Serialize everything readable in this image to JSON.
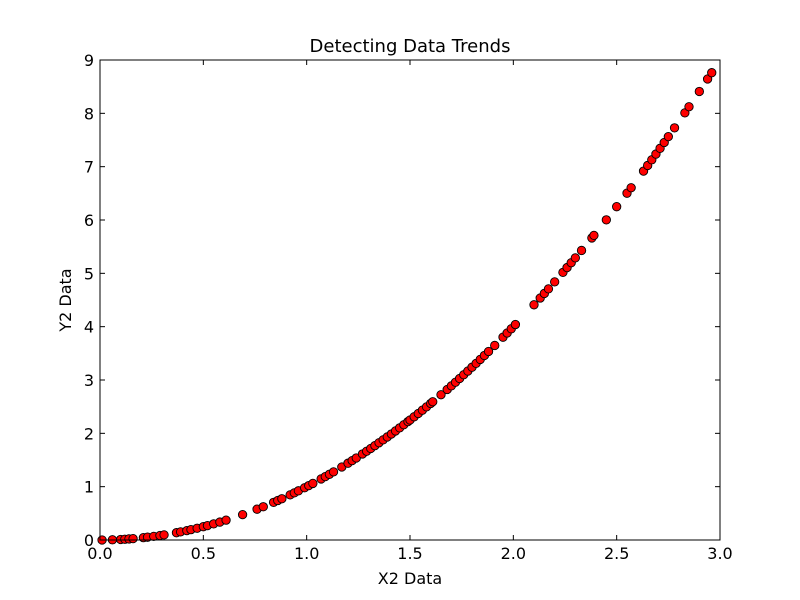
{
  "chart_data": {
    "type": "scatter",
    "title": "Detecting Data Trends",
    "xlabel": "X2 Data",
    "ylabel": "Y2 Data",
    "xlim": [
      0.0,
      3.0
    ],
    "ylim": [
      0,
      9
    ],
    "x_ticks": [
      "0.0",
      "0.5",
      "1.0",
      "1.5",
      "2.0",
      "2.5",
      "3.0"
    ],
    "y_ticks": [
      "0",
      "1",
      "2",
      "3",
      "4",
      "5",
      "6",
      "7",
      "8",
      "9"
    ],
    "grid": false,
    "marker_color": "#ff0000",
    "marker_edge_color": "#000000",
    "series": [
      {
        "points": [
          [
            0.01,
            0.0001
          ],
          [
            0.06,
            0.004
          ],
          [
            0.1,
            0.01
          ],
          [
            0.12,
            0.014
          ],
          [
            0.14,
            0.02
          ],
          [
            0.16,
            0.026
          ],
          [
            0.21,
            0.044
          ],
          [
            0.23,
            0.053
          ],
          [
            0.26,
            0.068
          ],
          [
            0.29,
            0.084
          ],
          [
            0.31,
            0.096
          ],
          [
            0.37,
            0.137
          ],
          [
            0.39,
            0.152
          ],
          [
            0.42,
            0.176
          ],
          [
            0.44,
            0.194
          ],
          [
            0.47,
            0.221
          ],
          [
            0.5,
            0.25
          ],
          [
            0.52,
            0.27
          ],
          [
            0.55,
            0.303
          ],
          [
            0.58,
            0.336
          ],
          [
            0.61,
            0.372
          ],
          [
            0.69,
            0.476
          ],
          [
            0.76,
            0.578
          ],
          [
            0.79,
            0.624
          ],
          [
            0.84,
            0.706
          ],
          [
            0.86,
            0.74
          ],
          [
            0.88,
            0.774
          ],
          [
            0.92,
            0.846
          ],
          [
            0.94,
            0.884
          ],
          [
            0.96,
            0.922
          ],
          [
            0.99,
            0.98
          ],
          [
            1.01,
            1.02
          ],
          [
            1.03,
            1.061
          ],
          [
            1.07,
            1.145
          ],
          [
            1.09,
            1.188
          ],
          [
            1.11,
            1.232
          ],
          [
            1.13,
            1.277
          ],
          [
            1.17,
            1.369
          ],
          [
            1.2,
            1.44
          ],
          [
            1.22,
            1.488
          ],
          [
            1.24,
            1.538
          ],
          [
            1.27,
            1.613
          ],
          [
            1.29,
            1.664
          ],
          [
            1.31,
            1.716
          ],
          [
            1.33,
            1.769
          ],
          [
            1.35,
            1.823
          ],
          [
            1.37,
            1.877
          ],
          [
            1.39,
            1.932
          ],
          [
            1.41,
            1.988
          ],
          [
            1.43,
            2.045
          ],
          [
            1.45,
            2.103
          ],
          [
            1.47,
            2.161
          ],
          [
            1.49,
            2.22
          ],
          [
            1.5,
            2.25
          ],
          [
            1.52,
            2.31
          ],
          [
            1.54,
            2.372
          ],
          [
            1.56,
            2.434
          ],
          [
            1.58,
            2.496
          ],
          [
            1.6,
            2.56
          ],
          [
            1.61,
            2.592
          ],
          [
            1.65,
            2.723
          ],
          [
            1.68,
            2.822
          ],
          [
            1.7,
            2.89
          ],
          [
            1.72,
            2.958
          ],
          [
            1.74,
            3.028
          ],
          [
            1.76,
            3.098
          ],
          [
            1.78,
            3.168
          ],
          [
            1.8,
            3.24
          ],
          [
            1.82,
            3.312
          ],
          [
            1.84,
            3.386
          ],
          [
            1.86,
            3.46
          ],
          [
            1.88,
            3.534
          ],
          [
            1.91,
            3.648
          ],
          [
            1.95,
            3.803
          ],
          [
            1.97,
            3.881
          ],
          [
            1.99,
            3.96
          ],
          [
            2.01,
            4.04
          ],
          [
            2.1,
            4.41
          ],
          [
            2.13,
            4.537
          ],
          [
            2.15,
            4.623
          ],
          [
            2.17,
            4.709
          ],
          [
            2.2,
            4.84
          ],
          [
            2.24,
            5.018
          ],
          [
            2.26,
            5.108
          ],
          [
            2.28,
            5.198
          ],
          [
            2.3,
            5.29
          ],
          [
            2.33,
            5.429
          ],
          [
            2.38,
            5.664
          ],
          [
            2.39,
            5.712
          ],
          [
            2.45,
            6.003
          ],
          [
            2.5,
            6.25
          ],
          [
            2.55,
            6.503
          ],
          [
            2.57,
            6.605
          ],
          [
            2.63,
            6.917
          ],
          [
            2.65,
            7.023
          ],
          [
            2.67,
            7.129
          ],
          [
            2.69,
            7.236
          ],
          [
            2.71,
            7.344
          ],
          [
            2.73,
            7.453
          ],
          [
            2.75,
            7.563
          ],
          [
            2.78,
            7.728
          ],
          [
            2.83,
            8.009
          ],
          [
            2.85,
            8.123
          ],
          [
            2.9,
            8.41
          ],
          [
            2.94,
            8.644
          ],
          [
            2.96,
            8.762
          ]
        ]
      }
    ]
  }
}
